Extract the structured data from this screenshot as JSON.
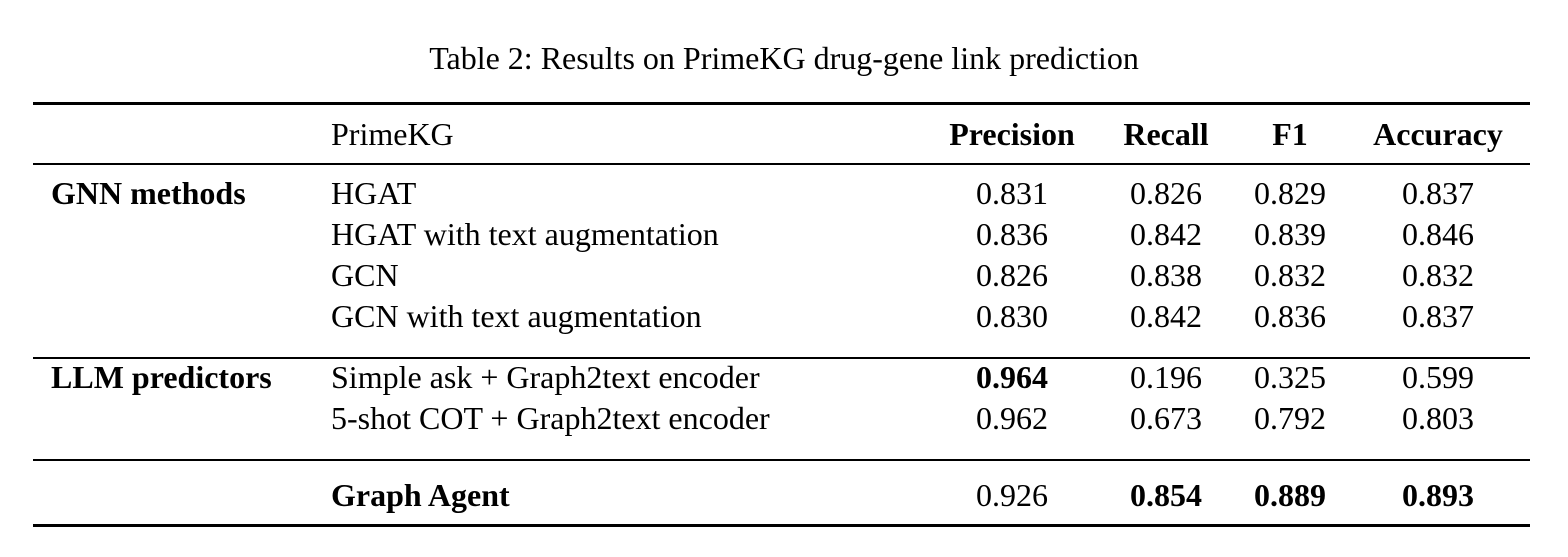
{
  "caption": "Table 2: Results on PrimeKG drug-gene link prediction",
  "header": {
    "group": "",
    "dataset": "PrimeKG",
    "precision": "Precision",
    "recall": "Recall",
    "f1": "F1",
    "accuracy": "Accuracy"
  },
  "sections": [
    {
      "group": "GNN methods",
      "rows": [
        {
          "method": "HGAT",
          "precision": "0.831",
          "recall": "0.826",
          "f1": "0.829",
          "accuracy": "0.837"
        },
        {
          "method": "HGAT with text augmentation",
          "precision": "0.836",
          "recall": "0.842",
          "f1": "0.839",
          "accuracy": "0.846"
        },
        {
          "method": "GCN",
          "precision": "0.826",
          "recall": "0.838",
          "f1": "0.832",
          "accuracy": "0.832"
        },
        {
          "method": "GCN with text augmentation",
          "precision": "0.830",
          "recall": "0.842",
          "f1": "0.836",
          "accuracy": "0.837"
        }
      ]
    },
    {
      "group": "LLM predictors",
      "rows": [
        {
          "method": "Simple ask + Graph2text encoder",
          "precision": "0.964",
          "recall": "0.196",
          "f1": "0.325",
          "accuracy": "0.599"
        },
        {
          "method": "5-shot COT + Graph2text encoder",
          "precision": "0.962",
          "recall": "0.673",
          "f1": "0.792",
          "accuracy": "0.803"
        }
      ]
    },
    {
      "group": "",
      "rows": [
        {
          "method": "Graph Agent",
          "precision": "0.926",
          "recall": "0.854",
          "f1": "0.889",
          "accuracy": "0.893"
        }
      ]
    }
  ]
}
